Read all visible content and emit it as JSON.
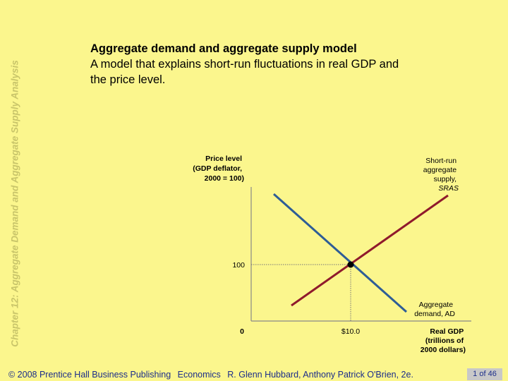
{
  "sidebar": {
    "chapter_title": "Chapter 12:  Aggregate Demand and Aggregate Supply Analysis"
  },
  "definition": {
    "term": "Aggregate demand and aggregate supply model",
    "text": "A model that explains short-run fluctuations in real GDP and the price level."
  },
  "figure": {
    "y_axis_label": [
      "Price level",
      "(GDP deflator,",
      "2000 = 100)"
    ],
    "x_axis_label": [
      "Real GDP",
      "(trillions of",
      "2000 dollars)"
    ],
    "origin_label": "0",
    "y_tick_label": "100",
    "x_tick_label": "$10.0",
    "sras_label": [
      "Short-run",
      "aggregate",
      "supply,",
      "SRAS"
    ],
    "ad_label": [
      "Aggregate",
      "demand, AD"
    ],
    "equilibrium": {
      "real_gdp_trillions": 10.0,
      "price_level": 100
    },
    "colors": {
      "sras": "#8f1a2c",
      "ad": "#2e5d96",
      "axis": "#888888",
      "guide": "#777777",
      "point": "#000000"
    }
  },
  "footer": {
    "copyright": "© 2008 Prentice Hall Business Publishing",
    "book": "Economics",
    "authors": "R. Glenn Hubbard, Anthony Patrick O'Brien, 2e.",
    "page": "1 of 46"
  }
}
